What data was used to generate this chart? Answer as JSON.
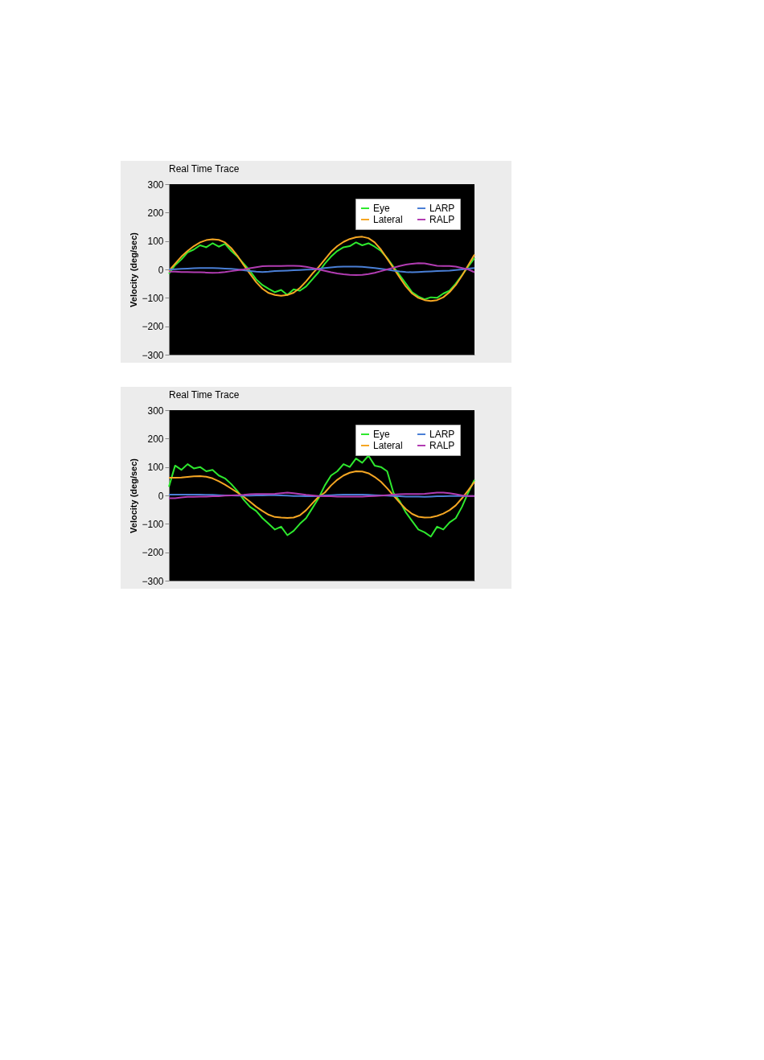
{
  "chart_data": [
    {
      "type": "line",
      "title": "Real Time Trace",
      "ylabel": "Velocity (deg/sec)",
      "ylim": [
        -300,
        300
      ],
      "yticks": [
        -300,
        -200,
        -100,
        0,
        100,
        200,
        300
      ],
      "grid": false,
      "legend": "top right",
      "tick_labels": "y",
      "categories": [
        null,
        null,
        null,
        null,
        null,
        null,
        null,
        null,
        null,
        null,
        null,
        null,
        null,
        null,
        null,
        null,
        null,
        null,
        null,
        null,
        null,
        null,
        null,
        null,
        null,
        null,
        null,
        null,
        null,
        null,
        null,
        null,
        null,
        null,
        null,
        null,
        null,
        null,
        null,
        null,
        null,
        null,
        null,
        null,
        null,
        null,
        null,
        null,
        null,
        null
      ],
      "series": [
        {
          "name": "Eye",
          "color": "#2ee82e",
          "values": [
            -15,
            15,
            35,
            60,
            70,
            85,
            78,
            92,
            80,
            90,
            65,
            45,
            20,
            -5,
            -35,
            -55,
            -68,
            -80,
            -72,
            -90,
            -70,
            -75,
            -60,
            -35,
            -10,
            20,
            45,
            65,
            78,
            82,
            95,
            85,
            92,
            80,
            65,
            40,
            10,
            -20,
            -50,
            -80,
            -95,
            -105,
            -98,
            -100,
            -85,
            -75,
            -50,
            -20,
            10,
            40
          ]
        },
        {
          "name": "Lateral",
          "color": "#f5a623",
          "values": [
            -5,
            20,
            45,
            65,
            82,
            95,
            103,
            106,
            104,
            95,
            75,
            48,
            15,
            -15,
            -45,
            -68,
            -83,
            -90,
            -93,
            -90,
            -82,
            -65,
            -42,
            -15,
            8,
            35,
            62,
            82,
            97,
            107,
            113,
            115,
            110,
            95,
            70,
            38,
            5,
            -28,
            -60,
            -85,
            -100,
            -108,
            -111,
            -108,
            -98,
            -80,
            -55,
            -22,
            15,
            52
          ]
        },
        {
          "name": "LARP",
          "color": "#4a7fd6",
          "values": [
            0,
            1,
            2,
            3,
            4,
            5,
            5,
            5,
            4,
            3,
            2,
            0,
            -3,
            -6,
            -8,
            -9,
            -8,
            -6,
            -5,
            -4,
            -3,
            -2,
            -1,
            0,
            2,
            5,
            7,
            9,
            10,
            10,
            10,
            9,
            7,
            5,
            2,
            -1,
            -4,
            -7,
            -9,
            -10,
            -9,
            -8,
            -7,
            -6,
            -5,
            -4,
            -2,
            0,
            3,
            5
          ]
        },
        {
          "name": "RALP",
          "color": "#b23cb2",
          "values": [
            -8,
            -8,
            -9,
            -9,
            -10,
            -10,
            -11,
            -12,
            -11,
            -9,
            -6,
            -3,
            0,
            4,
            8,
            11,
            12,
            12,
            12,
            13,
            13,
            12,
            9,
            5,
            0,
            -5,
            -10,
            -14,
            -17,
            -19,
            -20,
            -19,
            -16,
            -12,
            -6,
            0,
            6,
            12,
            17,
            20,
            22,
            21,
            17,
            13,
            12,
            12,
            10,
            5,
            0,
            -10
          ]
        }
      ]
    },
    {
      "type": "line",
      "title": "Real Time Trace",
      "ylabel": "Velocity (deg/sec)",
      "ylim": [
        -300,
        300
      ],
      "yticks": [
        -300,
        -200,
        -100,
        0,
        100,
        200,
        300
      ],
      "grid": false,
      "legend": "top right",
      "tick_labels": "y",
      "categories": [
        null,
        null,
        null,
        null,
        null,
        null,
        null,
        null,
        null,
        null,
        null,
        null,
        null,
        null,
        null,
        null,
        null,
        null,
        null,
        null,
        null,
        null,
        null,
        null,
        null,
        null,
        null,
        null,
        null,
        null,
        null,
        null,
        null,
        null,
        null,
        null,
        null,
        null,
        null,
        null,
        null,
        null,
        null,
        null,
        null,
        null,
        null,
        null,
        null,
        null
      ],
      "series": [
        {
          "name": "Eye",
          "color": "#2ee82e",
          "values": [
            30,
            105,
            90,
            110,
            95,
            100,
            85,
            90,
            70,
            60,
            40,
            15,
            -15,
            -40,
            -55,
            -80,
            -100,
            -120,
            -110,
            -140,
            -125,
            -100,
            -80,
            -45,
            -10,
            35,
            70,
            85,
            110,
            100,
            130,
            115,
            140,
            105,
            100,
            85,
            10,
            -20,
            -60,
            -90,
            -120,
            -130,
            -145,
            -110,
            -120,
            -95,
            -80,
            -40,
            10,
            55
          ]
        },
        {
          "name": "Lateral",
          "color": "#f5a623",
          "values": [
            62,
            62,
            63,
            65,
            67,
            68,
            66,
            60,
            50,
            38,
            24,
            10,
            -5,
            -22,
            -40,
            -55,
            -68,
            -76,
            -78,
            -79,
            -78,
            -70,
            -52,
            -28,
            -5,
            10,
            35,
            55,
            70,
            80,
            85,
            84,
            78,
            65,
            48,
            25,
            0,
            -25,
            -48,
            -65,
            -75,
            -78,
            -77,
            -72,
            -64,
            -52,
            -35,
            -10,
            18,
            48
          ]
        },
        {
          "name": "LARP",
          "color": "#4a7fd6",
          "values": [
            3,
            3,
            3,
            3,
            3,
            3,
            2,
            2,
            1,
            0,
            0,
            -1,
            -1,
            -1,
            0,
            0,
            1,
            1,
            0,
            -1,
            -2,
            -2,
            -3,
            -3,
            -2,
            0,
            1,
            2,
            3,
            3,
            3,
            3,
            2,
            1,
            0,
            -1,
            -2,
            -3,
            -4,
            -4,
            -4,
            -5,
            -4,
            -3,
            -3,
            -2,
            -2,
            -2,
            -2,
            -2
          ]
        },
        {
          "name": "RALP",
          "color": "#b23cb2",
          "values": [
            -10,
            -10,
            -7,
            -5,
            -5,
            -4,
            -4,
            -3,
            -3,
            -1,
            0,
            1,
            2,
            4,
            5,
            5,
            5,
            6,
            8,
            10,
            8,
            5,
            2,
            0,
            -2,
            -3,
            -3,
            -4,
            -4,
            -4,
            -4,
            -4,
            -3,
            -2,
            -1,
            1,
            3,
            4,
            5,
            5,
            5,
            6,
            8,
            10,
            10,
            8,
            4,
            0,
            -2,
            -2
          ]
        }
      ]
    }
  ]
}
